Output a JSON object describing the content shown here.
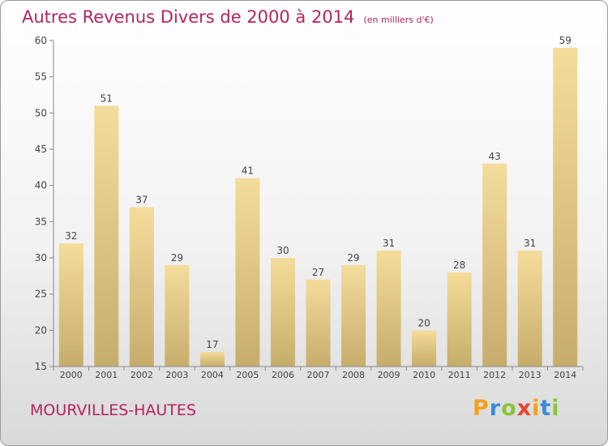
{
  "header": {
    "title": "Autres Revenus Divers de 2000 à 2014",
    "unit": "(en milliers d'€)"
  },
  "footer": {
    "city": "MOURVILLES-HAUTES",
    "logo_text": "Proxiti"
  },
  "colors": {
    "title": "#b5245e",
    "bar_light": "#f4dc9a",
    "bar_dark": "#c7ad6c",
    "axis": "#888888"
  },
  "chart_data": {
    "type": "bar",
    "categories": [
      "2000",
      "2001",
      "2002",
      "2003",
      "2004",
      "2005",
      "2006",
      "2007",
      "2008",
      "2009",
      "2010",
      "2011",
      "2012",
      "2013",
      "2014"
    ],
    "values": [
      32,
      51,
      37,
      29,
      17,
      41,
      30,
      27,
      29,
      31,
      20,
      28,
      43,
      31,
      59
    ],
    "ylim": [
      15,
      60
    ],
    "yticks": [
      15,
      20,
      25,
      30,
      35,
      40,
      45,
      50,
      55,
      60
    ],
    "grid": false,
    "data_labels": true
  }
}
